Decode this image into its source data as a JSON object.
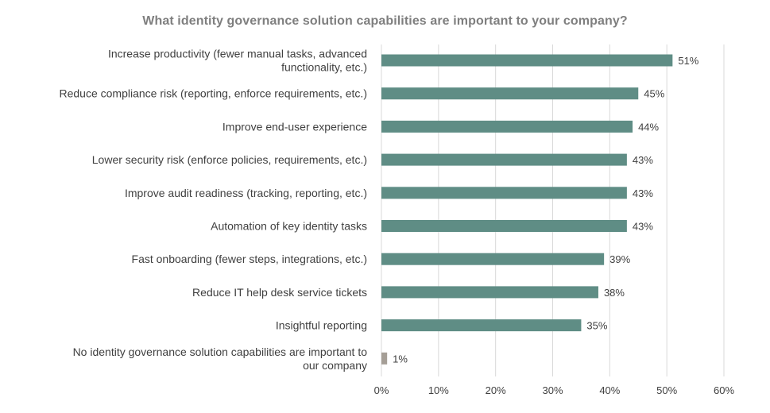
{
  "chart_data": {
    "type": "bar",
    "orientation": "horizontal",
    "title": "What identity governance solution capabilities are important to your company?",
    "categories": [
      "Increase productivity (fewer manual tasks, advanced functionality, etc.)",
      "Reduce compliance risk (reporting, enforce requirements, etc.)",
      "Improve end-user experience",
      "Lower security risk (enforce policies, requirements, etc.)",
      "Improve audit readiness (tracking, reporting, etc.)",
      "Automation of key identity tasks",
      "Fast onboarding (fewer steps, integrations, etc.)",
      "Reduce IT help desk service tickets",
      "Insightful reporting",
      "No identity governance solution capabilities are important to our company"
    ],
    "category_lines": [
      [
        "Increase productivity (fewer manual tasks, advanced",
        "functionality, etc.)"
      ],
      [
        "Reduce compliance risk (reporting, enforce requirements, etc.)"
      ],
      [
        "Improve end-user experience"
      ],
      [
        "Lower security risk (enforce policies, requirements, etc.)"
      ],
      [
        "Improve audit readiness (tracking, reporting, etc.)"
      ],
      [
        "Automation of key identity tasks"
      ],
      [
        "Fast onboarding (fewer steps, integrations, etc.)"
      ],
      [
        "Reduce IT help desk service tickets"
      ],
      [
        "Insightful reporting"
      ],
      [
        "No identity governance solution capabilities are important to",
        "our company"
      ]
    ],
    "values": [
      51,
      45,
      44,
      43,
      43,
      43,
      39,
      38,
      35,
      1
    ],
    "value_labels": [
      "51%",
      "45%",
      "44%",
      "43%",
      "43%",
      "43%",
      "39%",
      "38%",
      "35%",
      "1%"
    ],
    "bar_colors": [
      "#5f8d85",
      "#5f8d85",
      "#5f8d85",
      "#5f8d85",
      "#5f8d85",
      "#5f8d85",
      "#5f8d85",
      "#5f8d85",
      "#5f8d85",
      "#a59e96"
    ],
    "xlim": [
      0,
      60
    ],
    "x_ticks": [
      0,
      10,
      20,
      30,
      40,
      50,
      60
    ],
    "x_tick_labels": [
      "0%",
      "10%",
      "20%",
      "30%",
      "40%",
      "50%",
      "60%"
    ],
    "grid": "vertical",
    "legend": "none"
  },
  "colors": {
    "title": "#7f7f7f",
    "text": "#404040",
    "gridline": "#d9d9d9"
  }
}
